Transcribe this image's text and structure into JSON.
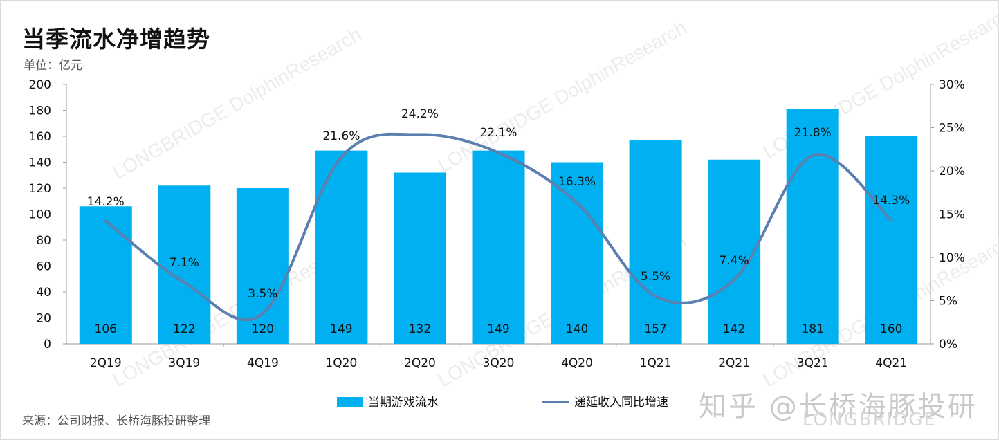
{
  "header": {
    "title": "当季流水净增趋势",
    "unit": "单位：亿元"
  },
  "footer": {
    "source": "来源：公司财报、长桥海豚投研整理"
  },
  "branding": {
    "text": "知乎 @长桥海豚投研",
    "sub": "LONGBRIDGE",
    "watermark": "LONGBRIDGE DolphinResearch"
  },
  "colors": {
    "bar": "#00b0f0",
    "line": "#5b7fae",
    "axis": "#9a9a9a",
    "text": "#111111"
  },
  "chart_data": {
    "type": "bar",
    "categories": [
      "2Q19",
      "3Q19",
      "4Q19",
      "1Q20",
      "2Q20",
      "3Q20",
      "4Q20",
      "1Q21",
      "2Q21",
      "3Q21",
      "4Q21"
    ],
    "series": [
      {
        "name": "当期游戏流水",
        "type": "bar",
        "axis": "left",
        "values": [
          106,
          122,
          120,
          149,
          132,
          149,
          140,
          157,
          142,
          181,
          160
        ],
        "labels": [
          "106",
          "122",
          "120",
          "149",
          "132",
          "149",
          "140",
          "157",
          "142",
          "181",
          "160"
        ]
      },
      {
        "name": "递延收入同比增速",
        "type": "line",
        "axis": "right",
        "values": [
          14.2,
          7.1,
          3.5,
          21.6,
          24.2,
          22.1,
          16.3,
          5.5,
          7.4,
          21.8,
          14.3
        ],
        "labels": [
          "14.2%",
          "7.1%",
          "3.5%",
          "21.6%",
          "24.2%",
          "22.1%",
          "16.3%",
          "5.5%",
          "7.4%",
          "21.8%",
          "14.3%"
        ]
      }
    ],
    "ylim": [
      0,
      200
    ],
    "yticks": [
      "0",
      "20",
      "40",
      "60",
      "80",
      "100",
      "120",
      "140",
      "160",
      "180",
      "200"
    ],
    "y2lim": [
      0,
      30
    ],
    "y2ticks": [
      "0%",
      "5%",
      "10%",
      "15%",
      "20%",
      "25%",
      "30%"
    ],
    "legend_position": "bottom",
    "grid": false
  }
}
